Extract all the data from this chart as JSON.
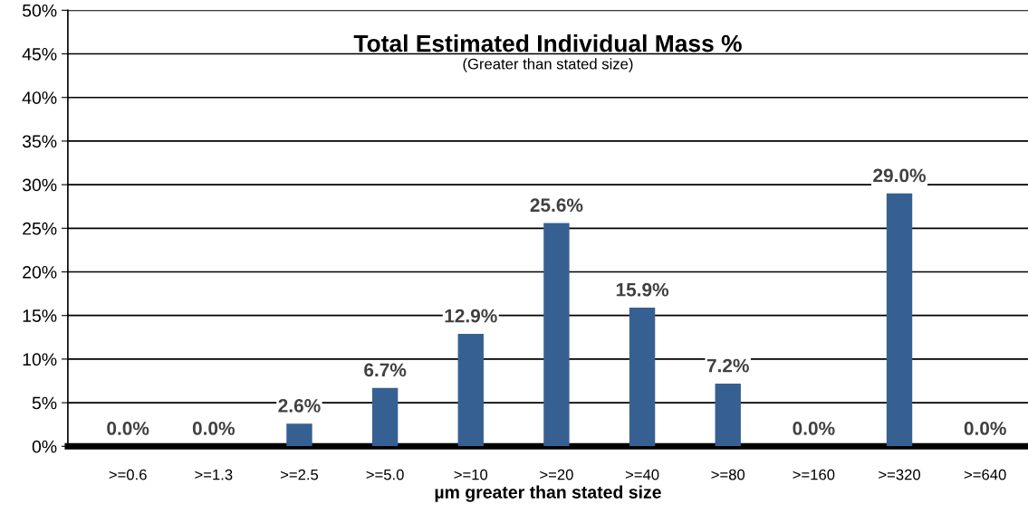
{
  "chart_data": {
    "type": "bar",
    "title": "Total Estimated Individual Mass %",
    "subtitle": "(Greater than stated size)",
    "xlabel": "µm greater than stated size",
    "categories": [
      ">=0.6",
      ">=1.3",
      ">=2.5",
      ">=5.0",
      ">=10",
      ">=20",
      ">=40",
      ">=80",
      ">=160",
      ">=320",
      ">=640"
    ],
    "values": [
      0.0,
      0.0,
      2.6,
      6.7,
      12.9,
      25.6,
      15.9,
      7.2,
      0.0,
      29.0,
      0.0
    ],
    "value_labels": [
      "0.0%",
      "0.0%",
      "2.6%",
      "6.7%",
      "12.9%",
      "25.6%",
      "15.9%",
      "7.2%",
      "0.0%",
      "29.0%",
      "0.0%"
    ],
    "color": "#376092",
    "ylim": [
      0,
      50
    ],
    "yticks": [
      {
        "value": 0,
        "label": "0%"
      },
      {
        "value": 5,
        "label": "5%"
      },
      {
        "value": 10,
        "label": "10%"
      },
      {
        "value": 15,
        "label": "15%"
      },
      {
        "value": 20,
        "label": "20%"
      },
      {
        "value": 25,
        "label": "25%"
      },
      {
        "value": 30,
        "label": "30%"
      },
      {
        "value": 35,
        "label": "35%"
      },
      {
        "value": 40,
        "label": "40%"
      },
      {
        "value": 45,
        "label": "45%"
      },
      {
        "value": 50,
        "label": "50%"
      }
    ],
    "grid": "y"
  }
}
